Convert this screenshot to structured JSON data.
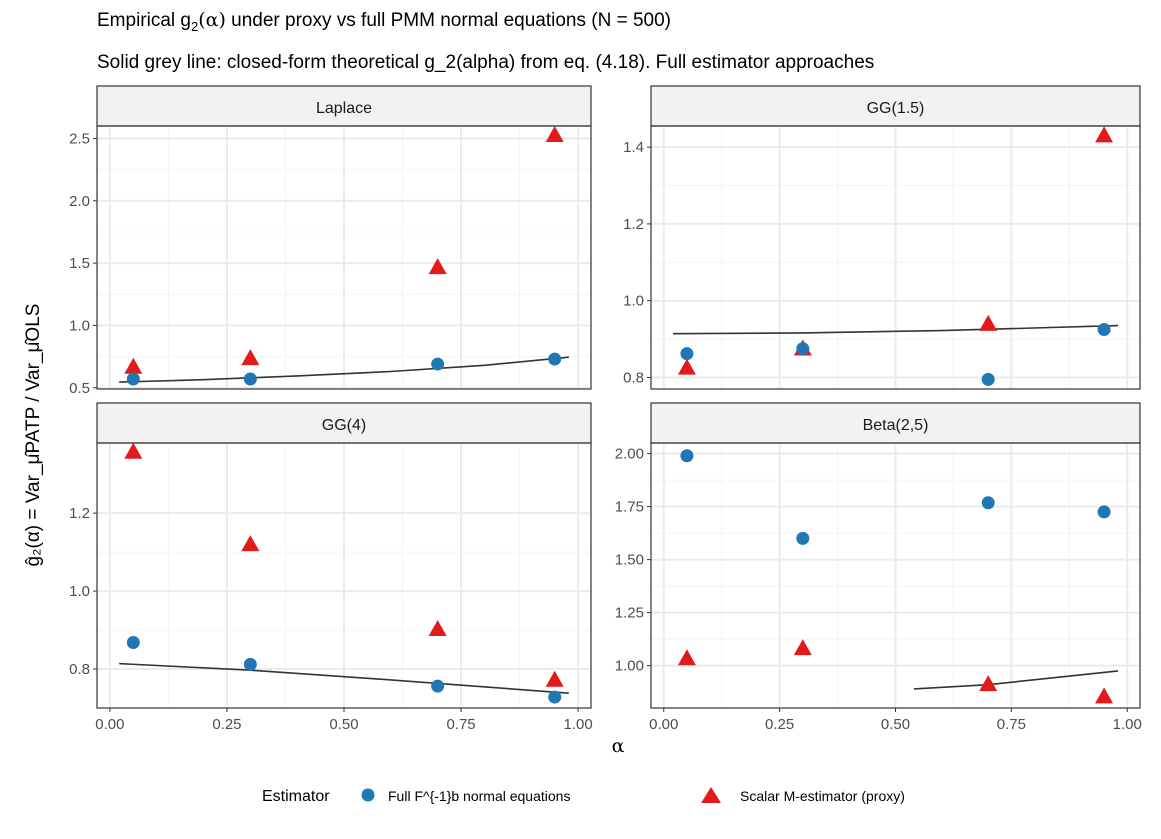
{
  "title_prefix": "Empirical g",
  "title_sub": "2",
  "title_alpha": "(α)",
  "title_rest": " under proxy vs full PMM normal equations (N = 500)",
  "subtitle": "Solid grey line: closed-form theoretical g_2(alpha) from eq. (4.18). Full estimator approaches",
  "ylabel": "ĝ₂(α) = Var_μ̂PATP / Var_μ̂OLS",
  "xlabel": "α",
  "legend": {
    "title": "Estimator",
    "items": [
      {
        "label": "Full F^{-1}b normal equations",
        "color": "#1f78b4",
        "shape": "circle"
      },
      {
        "label": "Scalar M-estimator (proxy)",
        "color": "#e31a1c",
        "shape": "triangle"
      }
    ]
  },
  "colors": {
    "full": "#1f78b4",
    "proxy": "#e31a1c",
    "theory": "#333333",
    "strip_fill": "#f2f2f2",
    "grid": "#ebebeb"
  },
  "chart_data": [
    {
      "type": "scatter",
      "panel": "Laplace",
      "xlim": [
        -0.0275,
        1.0275
      ],
      "ylim": [
        0.49,
        2.6
      ],
      "xticks": [
        0.0,
        0.25,
        0.5,
        0.75,
        1.0
      ],
      "xtick_labels": [
        "0.00",
        "0.25",
        "0.50",
        "0.75",
        "1.00"
      ],
      "yticks": [
        0.5,
        1.0,
        1.5,
        2.0,
        2.5
      ],
      "ytick_labels": [
        "0.5",
        "1.0",
        "1.5",
        "2.0",
        "2.5"
      ],
      "series": [
        {
          "name": "Full F^{-1}b normal equations",
          "x": [
            0.05,
            0.3,
            0.7,
            0.95
          ],
          "y": [
            0.57,
            0.57,
            0.69,
            0.73
          ]
        },
        {
          "name": "Scalar M-estimator (proxy)",
          "x": [
            0.05,
            0.3,
            0.7,
            0.95
          ],
          "y": [
            0.66,
            0.73,
            1.46,
            2.52
          ]
        }
      ],
      "theory": {
        "x": [
          0.02,
          0.2,
          0.4,
          0.6,
          0.8,
          0.98
        ],
        "y": [
          0.545,
          0.565,
          0.595,
          0.63,
          0.68,
          0.745
        ]
      }
    },
    {
      "type": "scatter",
      "panel": "GG(1.5)",
      "xlim": [
        -0.0275,
        1.0275
      ],
      "ylim": [
        0.77,
        1.455
      ],
      "xticks": [
        0.0,
        0.25,
        0.5,
        0.75,
        1.0
      ],
      "xtick_labels": [
        "0.00",
        "0.25",
        "0.50",
        "0.75",
        "1.00"
      ],
      "yticks": [
        0.8,
        1.0,
        1.2,
        1.4
      ],
      "ytick_labels": [
        "0.8",
        "1.0",
        "1.2",
        "1.4"
      ],
      "series": [
        {
          "name": "Full F^{-1}b normal equations",
          "x": [
            0.05,
            0.3,
            0.7,
            0.95
          ],
          "y": [
            0.862,
            0.875,
            0.795,
            0.925
          ]
        },
        {
          "name": "Scalar M-estimator (proxy)",
          "x": [
            0.05,
            0.3,
            0.7,
            0.95
          ],
          "y": [
            0.823,
            0.873,
            0.937,
            1.428
          ]
        }
      ],
      "theory": {
        "x": [
          0.02,
          0.3,
          0.6,
          0.98
        ],
        "y": [
          0.914,
          0.916,
          0.922,
          0.935
        ]
      }
    },
    {
      "type": "scatter",
      "panel": "GG(4)",
      "xlim": [
        -0.0275,
        1.0275
      ],
      "ylim": [
        0.7,
        1.38
      ],
      "xticks": [
        0.0,
        0.25,
        0.5,
        0.75,
        1.0
      ],
      "xtick_labels": [
        "0.00",
        "0.25",
        "0.50",
        "0.75",
        "1.00"
      ],
      "yticks": [
        0.8,
        1.0,
        1.2
      ],
      "ytick_labels": [
        "0.8",
        "1.0",
        "1.2"
      ],
      "series": [
        {
          "name": "Full F^{-1}b normal equations",
          "x": [
            0.05,
            0.3,
            0.7,
            0.95
          ],
          "y": [
            0.868,
            0.812,
            0.756,
            0.728
          ]
        },
        {
          "name": "Scalar M-estimator (proxy)",
          "x": [
            0.05,
            0.3,
            0.7,
            0.95
          ],
          "y": [
            1.355,
            1.118,
            0.9,
            0.77
          ]
        }
      ],
      "theory": {
        "x": [
          0.02,
          0.3,
          0.6,
          0.98
        ],
        "y": [
          0.814,
          0.797,
          0.772,
          0.738
        ]
      }
    },
    {
      "type": "scatter",
      "panel": "Beta(2,5)",
      "xlim": [
        -0.0275,
        1.0275
      ],
      "ylim": [
        0.8,
        2.05
      ],
      "xticks": [
        0.0,
        0.25,
        0.5,
        0.75,
        1.0
      ],
      "xtick_labels": [
        "0.00",
        "0.25",
        "0.50",
        "0.75",
        "1.00"
      ],
      "yticks": [
        1.0,
        1.25,
        1.5,
        1.75,
        2.0
      ],
      "ytick_labels": [
        "1.00",
        "1.25",
        "1.50",
        "1.75",
        "2.00"
      ],
      "series": [
        {
          "name": "Full F^{-1}b normal equations",
          "x": [
            0.05,
            0.3,
            0.7,
            0.95
          ],
          "y": [
            1.99,
            1.6,
            1.768,
            1.725
          ]
        },
        {
          "name": "Scalar M-estimator (proxy)",
          "x": [
            0.05,
            0.3,
            0.7,
            0.95
          ],
          "y": [
            1.03,
            1.078,
            0.908,
            0.85
          ]
        }
      ],
      "theory": {
        "x": [
          0.54,
          0.7,
          0.85,
          0.98
        ],
        "y": [
          0.89,
          0.91,
          0.945,
          0.975
        ]
      }
    }
  ]
}
